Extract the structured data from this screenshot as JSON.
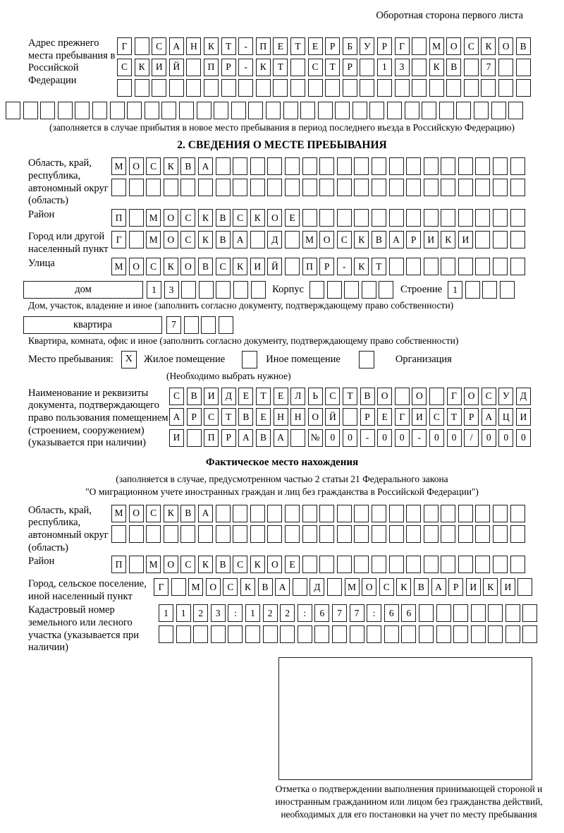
{
  "page": {
    "corner_note": "Оборотная сторона первого листа"
  },
  "prev_address": {
    "label": "Адрес прежнего места пребывания в Российской Федерации",
    "rows": [
      {
        "n": 24,
        "text": "Г САНКТ-ПЕТЕРБУРГ МОСКОВ"
      },
      {
        "n": 24,
        "text": "СКИЙ ПР-КТ СТР 13 КВ 7"
      },
      {
        "n": 24,
        "text": ""
      },
      {
        "n": 30,
        "text": ""
      }
    ],
    "caption": "(заполняется в случае прибытия в новое место пребывания в период последнего въезда в Российскую Федерацию)"
  },
  "section2": {
    "title": "2. СВЕДЕНИЯ О МЕСТЕ ПРЕБЫВАНИЯ",
    "region": {
      "label": "Область, край, республика, автономный округ (область)",
      "rows": [
        {
          "n": 24,
          "text": "МОСКВА"
        },
        {
          "n": 24,
          "text": ""
        }
      ]
    },
    "district": {
      "label": "Район",
      "row": {
        "n": 24,
        "text": "П МОСКВСКОЕ"
      }
    },
    "city": {
      "label": "Город или другой населенный пункт",
      "row": {
        "n": 24,
        "text": "Г МОСКВА Д МОСКВАРИКИ"
      }
    },
    "street": {
      "label": "Улица",
      "row": {
        "n": 24,
        "text": "МОСКОВСКИЙ ПР-КТ"
      }
    },
    "house": {
      "box_label": "дом",
      "cells": {
        "n": 7,
        "text": "13"
      },
      "korpus_label": "Корпус",
      "korpus_cells": {
        "n": 5,
        "text": ""
      },
      "stroenie_label": "Строение",
      "stroenie_cells": {
        "n": 4,
        "text": "1"
      },
      "caption": "Дом, участок, владение и иное (заполнить согласно документу, подтверждающему право собственности)"
    },
    "apartment": {
      "box_label": "квартира",
      "cells": {
        "n": 4,
        "text": "7"
      },
      "caption": "Квартира, комната, офис и иное (заполнить согласно документу, подтверждающему право собственности)"
    },
    "stay_type": {
      "label": "Место пребывания:",
      "options": [
        {
          "label": "Жилое помещение",
          "checked": "X"
        },
        {
          "label": "Иное помещение",
          "checked": ""
        },
        {
          "label": "Организация",
          "checked": ""
        }
      ],
      "caption": "(Необходимо выбрать нужное)"
    },
    "document": {
      "label": "Наименование и реквизиты документа, подтверждающего право пользования помещением (строением, сооружением) (указывается при наличии)",
      "rows": [
        {
          "n": 21,
          "text": "СВИДЕТЕЛЬСТВО О ГОСУД"
        },
        {
          "n": 21,
          "text": "АРСТВЕННОЙ РЕГИСТРАЦИ"
        },
        {
          "n": 21,
          "text": "И ПРАВА №00-00-00/000"
        }
      ]
    }
  },
  "actual_location": {
    "title": "Фактическое место нахождения",
    "note_line1": "(заполняется в случае, предусмотренном частью 2 статьи 21 Федерального закона",
    "note_line2": "\"О миграционном учете иностранных граждан и лиц без гражданства в Российской Федерации\")",
    "region": {
      "label": "Область, край, республика, автономный округ (область)",
      "rows": [
        {
          "n": 24,
          "text": "МОСКВА"
        },
        {
          "n": 24,
          "text": ""
        }
      ]
    },
    "district": {
      "label": "Район",
      "row": {
        "n": 24,
        "text": "П МОСКВСКОЕ"
      }
    },
    "city": {
      "label": "Город, сельское поселение, иной населенный пункт",
      "row": {
        "n": 22,
        "text": "Г МОСКВА Д МОСКВАРИКИ"
      }
    },
    "cadastral": {
      "label": "Кадастровый номер земельного или лесного участка (указывается при наличии)",
      "rows": [
        {
          "n": 22,
          "text": "1123:122:677:66"
        },
        {
          "n": 22,
          "text": ""
        }
      ]
    },
    "stamp_caption": "Отметка о подтверждении выполнения принимающей стороной и иностранным гражданином или лицом без гражданства действий, необходимых для его постановки на учет по месту пребывания"
  }
}
